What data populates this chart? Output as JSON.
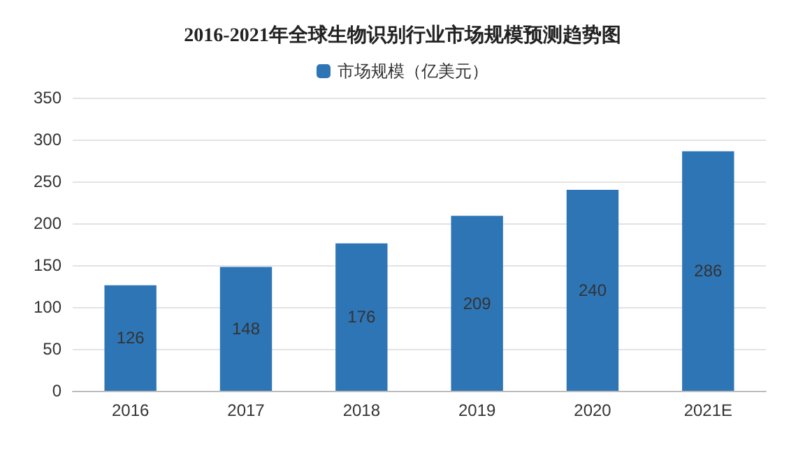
{
  "chart_data": {
    "type": "bar",
    "title": "2016-2021年全球生物识别行业市场规模预测趋势图",
    "categories": [
      "2016",
      "2017",
      "2018",
      "2019",
      "2020",
      "2021E"
    ],
    "series": [
      {
        "name": "市场规模（亿美元）",
        "color": "#2e75b6",
        "values": [
          126,
          148,
          176,
          209,
          240,
          286
        ]
      }
    ],
    "ylim": [
      0,
      350
    ],
    "yticks": [
      0,
      50,
      100,
      150,
      200,
      250,
      300,
      350
    ],
    "grid": "y",
    "legend": "top",
    "data_labels": true
  }
}
